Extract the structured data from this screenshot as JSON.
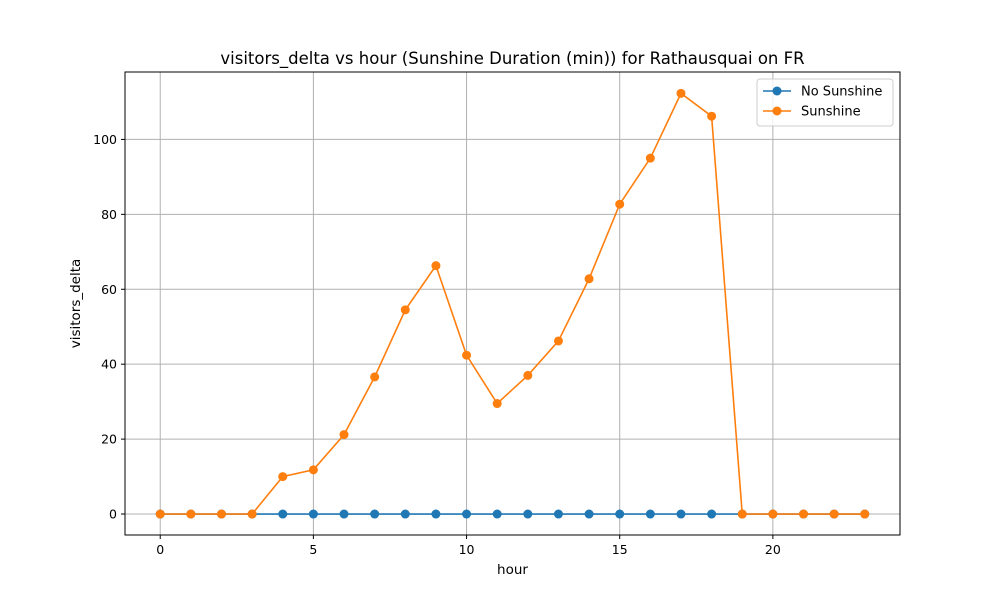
{
  "chart_data": {
    "type": "line",
    "title": "visitors_delta vs hour (Sunshine Duration (min)) for Rathausquai on FR",
    "xlabel": "hour",
    "ylabel": "visitors_delta",
    "xlim": [
      -1.15,
      24.15
    ],
    "ylim": [
      -5.6,
      118
    ],
    "x_ticks": [
      0,
      5,
      10,
      15,
      20
    ],
    "y_ticks": [
      0,
      20,
      40,
      60,
      80,
      100
    ],
    "grid": true,
    "legend_position": "top-right",
    "x": [
      0,
      1,
      2,
      3,
      4,
      5,
      6,
      7,
      8,
      9,
      10,
      11,
      12,
      13,
      14,
      15,
      16,
      17,
      18,
      19,
      20,
      21,
      22,
      23
    ],
    "series": [
      {
        "name": "No Sunshine",
        "color": "#1f77b4",
        "values": [
          0,
          0,
          0,
          0,
          0,
          0,
          0,
          0,
          0,
          0,
          0,
          0,
          0,
          0,
          0,
          0,
          0,
          0,
          0,
          0,
          0,
          0,
          0,
          0
        ]
      },
      {
        "name": "Sunshine",
        "color": "#ff7f0e",
        "values": [
          0,
          0,
          0,
          0,
          10,
          11.8,
          21.2,
          36.6,
          54.5,
          66.3,
          42.4,
          29.5,
          37,
          46.2,
          62.8,
          82.7,
          95,
          112.3,
          106.2,
          0,
          0,
          0,
          0,
          0
        ]
      }
    ]
  }
}
